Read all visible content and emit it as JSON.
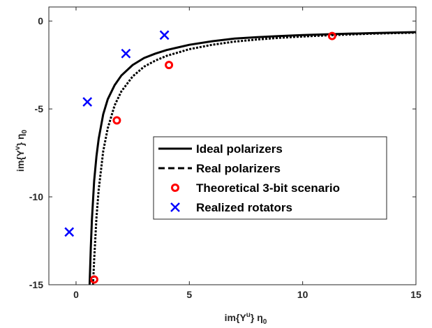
{
  "chart_data": {
    "type": "line",
    "xlabel_main": "im{Y",
    "xlabel_sup": "u",
    "xlabel_tail": "} η",
    "xlabel_sub": "0",
    "ylabel_main": "im{Y",
    "ylabel_sup": "v",
    "ylabel_tail": "} η",
    "ylabel_sub": "0",
    "xlim": [
      -1.2,
      15
    ],
    "ylim": [
      -15,
      0.8
    ],
    "xticks": [
      0,
      5,
      10,
      15
    ],
    "yticks": [
      0,
      -5,
      -10,
      -15
    ],
    "xtick_labels": [
      "0",
      "5",
      "10",
      "15"
    ],
    "ytick_labels": [
      "0",
      "-5",
      "-10",
      "-15"
    ],
    "grid": false,
    "legend_position": "center-right",
    "series": [
      {
        "name": "Ideal polarizers",
        "kind": "line",
        "style": "solid",
        "color": "#000000",
        "x": [
          0.6,
          0.65,
          0.7,
          0.8,
          0.9,
          1.0,
          1.2,
          1.4,
          1.7,
          2.0,
          2.5,
          3.0,
          3.5,
          4.0,
          5.0,
          6.0,
          7.0,
          8.0,
          9.0,
          10.0,
          11.0,
          12.0,
          13.0,
          14.0,
          15.0
        ],
        "y": [
          -15.0,
          -12.9,
          -11.3,
          -9.1,
          -7.7,
          -6.7,
          -5.3,
          -4.45,
          -3.65,
          -3.1,
          -2.5,
          -2.1,
          -1.85,
          -1.65,
          -1.35,
          -1.15,
          -1.0,
          -0.92,
          -0.85,
          -0.8,
          -0.76,
          -0.72,
          -0.69,
          -0.66,
          -0.63
        ]
      },
      {
        "name": "Real polarizers",
        "kind": "line",
        "style": "dashed",
        "color": "#000000",
        "x": [
          0.75,
          0.8,
          0.9,
          1.0,
          1.2,
          1.4,
          1.7,
          2.0,
          2.5,
          3.0,
          3.5,
          4.0,
          5.0,
          6.0,
          7.0,
          8.0,
          9.0,
          10.0,
          11.0,
          12.0,
          13.0,
          14.0,
          15.0
        ],
        "y": [
          -15.0,
          -13.6,
          -11.2,
          -9.6,
          -7.4,
          -6.1,
          -4.8,
          -4.0,
          -3.15,
          -2.6,
          -2.25,
          -1.98,
          -1.6,
          -1.35,
          -1.17,
          -1.05,
          -0.95,
          -0.88,
          -0.82,
          -0.77,
          -0.72,
          -0.69,
          -0.66
        ]
      },
      {
        "name": "Theoretical 3-bit scenario",
        "kind": "scatter",
        "marker": "circle",
        "color": "#ff0000",
        "x": [
          0.8,
          1.8,
          4.1,
          11.3
        ],
        "y": [
          -14.7,
          -5.65,
          -2.5,
          -0.85
        ]
      },
      {
        "name": "Realized rotators",
        "kind": "scatter",
        "marker": "x",
        "color": "#0000ff",
        "x": [
          -0.3,
          0.5,
          2.2,
          3.9
        ],
        "y": [
          -12.0,
          -4.6,
          -1.85,
          -0.8
        ]
      }
    ]
  }
}
